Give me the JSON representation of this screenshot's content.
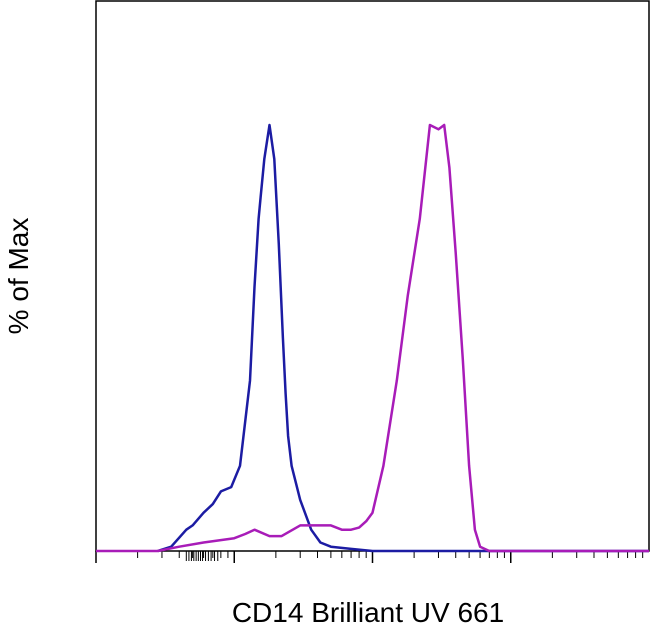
{
  "chart_data": {
    "type": "line",
    "title": "",
    "xlabel": "CD14 Brilliant UV 661",
    "ylabel": "% of Max",
    "x_scale": "log",
    "xlim": [
      10,
      100000
    ],
    "ylim": [
      0,
      100
    ],
    "grid": false,
    "series": [
      {
        "color": "#1c1ca3",
        "x": [
          28,
          35,
          45,
          50,
          60,
          70,
          80,
          95,
          110,
          130,
          140,
          150,
          155,
          165,
          180,
          195,
          210,
          225,
          235,
          245,
          260,
          300,
          360,
          420,
          500,
          700,
          1000,
          2000,
          10000,
          100000
        ],
        "y": [
          0,
          1,
          5,
          6,
          9,
          11,
          14,
          15,
          20,
          40,
          62,
          78,
          83,
          92,
          100,
          92,
          72,
          50,
          37,
          27,
          20,
          12,
          5,
          2,
          1,
          0.5,
          0,
          0,
          0,
          0
        ]
      },
      {
        "color": "#a81cb8",
        "x": [
          10,
          28,
          40,
          60,
          100,
          120,
          140,
          180,
          220,
          300,
          400,
          500,
          600,
          700,
          800,
          900,
          1000,
          1200,
          1500,
          1800,
          2200,
          2600,
          3000,
          3300,
          3600,
          4000,
          4500,
          5000,
          5500,
          6000,
          7000,
          100000
        ],
        "y": [
          0,
          0,
          1,
          2,
          3,
          4,
          5,
          3.5,
          3.5,
          6,
          6,
          6,
          5,
          5,
          5.5,
          7,
          9,
          20,
          40,
          60,
          78,
          100,
          99,
          100,
          90,
          70,
          45,
          20,
          5,
          1,
          0,
          0
        ]
      }
    ]
  }
}
